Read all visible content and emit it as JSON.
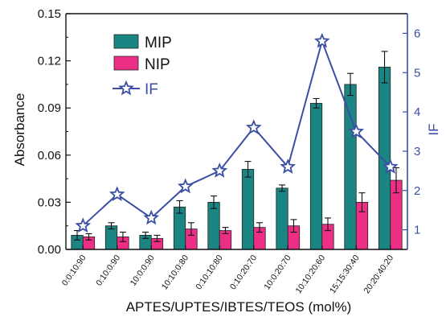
{
  "chart_data": {
    "type": "bar",
    "xlabel": "APTES/UPTES/IBTES/TEOS (mol%)",
    "ylabel": "Absorbance",
    "y2label": "IF",
    "ylim": [
      0,
      0.15
    ],
    "y2lim": [
      0.5,
      6.5
    ],
    "yticks": [
      "0.00",
      "0.03",
      "0.06",
      "0.09",
      "0.12",
      "0.15"
    ],
    "y2ticks": [
      "1",
      "2",
      "3",
      "4",
      "5",
      "6"
    ],
    "categories": [
      "0:0:10:90",
      "0:10:0:90",
      "10:0:0:90",
      "10:10:0:80",
      "0:10:10:80",
      "0:10:20:70",
      "10:0:20:70",
      "10:10:20:60",
      "15:15:30:40",
      "20:20:40:20"
    ],
    "series": [
      {
        "name": "MIP",
        "kind": "bar",
        "color": "#1b8583",
        "values": [
          0.009,
          0.015,
          0.009,
          0.027,
          0.03,
          0.051,
          0.039,
          0.093,
          0.105,
          0.116
        ],
        "errors": [
          0.003,
          0.002,
          0.002,
          0.004,
          0.004,
          0.005,
          0.002,
          0.003,
          0.007,
          0.01
        ]
      },
      {
        "name": "NIP",
        "kind": "bar",
        "color": "#ec2f85",
        "values": [
          0.008,
          0.008,
          0.007,
          0.013,
          0.012,
          0.014,
          0.015,
          0.016,
          0.03,
          0.044
        ],
        "errors": [
          0.002,
          0.003,
          0.002,
          0.004,
          0.002,
          0.003,
          0.004,
          0.004,
          0.006,
          0.008
        ]
      },
      {
        "name": "IF",
        "kind": "line",
        "axis": "right",
        "color": "#3a4fa3",
        "values": [
          1.1,
          1.9,
          1.3,
          2.1,
          2.5,
          3.6,
          2.6,
          5.8,
          3.5,
          2.6
        ]
      }
    ],
    "legend": {
      "position": "top-left",
      "items": [
        "MIP",
        "NIP",
        "IF"
      ]
    }
  }
}
